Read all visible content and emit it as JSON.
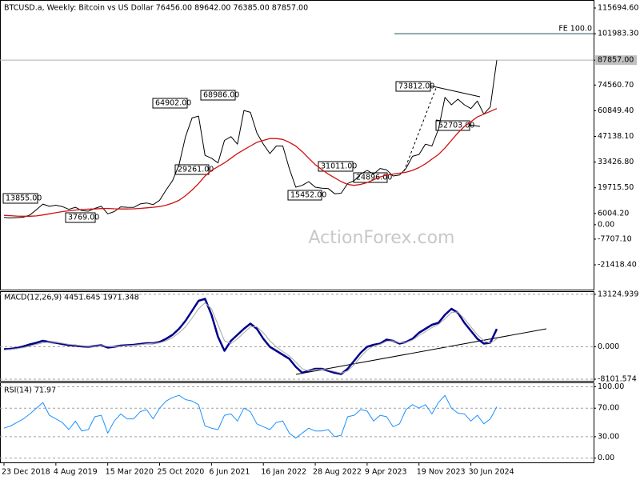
{
  "chart_data": [
    {
      "type": "line",
      "title": "BTCUSD.a, Weekly:  Bitcoin vs US Dollar  76456.00 89642.00 76385.00 87857.00",
      "watermark": "ActionForex.com",
      "categories": [
        "23 Dec 2018",
        null,
        null,
        null,
        null,
        null,
        null,
        null,
        "4 Aug 2019",
        null,
        null,
        null,
        null,
        null,
        null,
        null,
        "15 Mar 2020",
        null,
        null,
        null,
        null,
        null,
        null,
        null,
        "25 Oct 2020",
        null,
        null,
        null,
        null,
        null,
        null,
        null,
        "6 Jun 2021",
        null,
        null,
        null,
        null,
        null,
        null,
        null,
        "16 Jan 2022",
        null,
        null,
        null,
        null,
        null,
        null,
        null,
        "28 Aug 2022",
        null,
        null,
        null,
        null,
        null,
        null,
        null,
        "9 Apr 2023",
        null,
        null,
        null,
        null,
        null,
        null,
        null,
        "19 Nov 2023",
        null,
        null,
        null,
        null,
        null,
        null,
        null,
        "30 Jun 2024",
        null,
        null,
        null,
        null
      ],
      "series": [
        {
          "color": "#000000",
          "values": [
            3900,
            3600,
            3800,
            4000,
            5200,
            8000,
            11000,
            9800,
            10400,
            9700,
            8200,
            9300,
            7500,
            7200,
            8700,
            9800,
            5800,
            7000,
            9500,
            9300,
            9200,
            11100,
            11600,
            10700,
            13000,
            18500,
            23500,
            32000,
            47000,
            57000,
            58000,
            37000,
            35500,
            33000,
            45000,
            47000,
            43000,
            61000,
            60000,
            49000,
            43000,
            38000,
            42000,
            42000,
            30000,
            20000,
            21000,
            23000,
            20000,
            19500,
            19300,
            16500,
            16800,
            22000,
            23500,
            27000,
            29000,
            27000,
            30000,
            29300,
            26000,
            26500,
            30000,
            36500,
            37500,
            43000,
            42000,
            51000,
            68000,
            64000,
            67000,
            64000,
            62000,
            66000,
            59000,
            63000,
            87857
          ]
        },
        {
          "color": "#d01010",
          "values": [
            5000,
            4800,
            4600,
            4500,
            4500,
            4700,
            5200,
            5800,
            6400,
            7000,
            7400,
            7800,
            8100,
            8300,
            8400,
            8600,
            8700,
            8500,
            8400,
            8400,
            8500,
            8700,
            9000,
            9300,
            9700,
            10400,
            11500,
            13000,
            15500,
            18500,
            22000,
            26000,
            29000,
            31000,
            33000,
            35500,
            38000,
            40000,
            42000,
            44000,
            45000,
            46000,
            46000,
            45500,
            44000,
            42000,
            39000,
            35500,
            32000,
            29500,
            27000,
            25000,
            23000,
            21500,
            21000,
            21500,
            22500,
            24000,
            25500,
            26500,
            27000,
            27500,
            28000,
            29000,
            30500,
            32500,
            35000,
            37500,
            41000,
            45000,
            49000,
            52500,
            55000,
            57500,
            59000,
            60500,
            62000
          ]
        }
      ],
      "ylim": [
        -34660,
        119970
      ],
      "yticks": [
        {
          "value": 115694.6,
          "label": "115694.60"
        },
        {
          "value": 101983.3,
          "label": "101983.30"
        },
        {
          "value": 87857,
          "label": "87857.00"
        },
        {
          "value": 74560.7,
          "label": "74560.70"
        },
        {
          "value": 60849.4,
          "label": "60849.40"
        },
        {
          "value": 47138.1,
          "label": "47138.10"
        },
        {
          "value": 33426.8,
          "label": "33426.80"
        },
        {
          "value": 19715.5,
          "label": "19715.50"
        },
        {
          "value": 6004.2,
          "label": "6004.20"
        },
        {
          "value": 0,
          "label": "0.00"
        },
        {
          "value": -7707.1,
          "label": "-7707.10"
        },
        {
          "value": -21418.4,
          "label": "-21418.40"
        }
      ],
      "grid": false,
      "annotations": [
        "13855.00",
        "3769.00",
        "64902.00",
        "68986.00",
        "29261.00",
        "15452.00",
        "31011.00",
        "24896.00",
        "73812.00",
        "52703.00"
      ],
      "fe_line": {
        "label": "FE 100.0",
        "value": 101983.3
      }
    },
    {
      "type": "line",
      "title": "MACD(12,26,9) 4451.645 1971.348",
      "series": [
        {
          "color": "#00008b",
          "values": [
            -600,
            -500,
            -300,
            100,
            600,
            1000,
            1500,
            1200,
            1000,
            700,
            400,
            300,
            100,
            0,
            200,
            400,
            -200,
            0,
            300,
            400,
            500,
            700,
            900,
            900,
            1200,
            2000,
            3000,
            4500,
            6500,
            9000,
            11500,
            12000,
            8000,
            2500,
            -1000,
            1500,
            3000,
            4500,
            5800,
            4500,
            2000,
            0,
            -1000,
            -2000,
            -3000,
            -5000,
            -6500,
            -6000,
            -5500,
            -5500,
            -6000,
            -6500,
            -6800,
            -5500,
            -3500,
            -1500,
            0,
            500,
            800,
            1800,
            1500,
            800,
            1200,
            2000,
            3500,
            4500,
            5500,
            6000,
            8000,
            9500,
            8500,
            6000,
            4000,
            2000,
            800,
            1000,
            4451.645
          ]
        },
        {
          "color": "#a9a9a9",
          "values": [
            -800,
            -650,
            -450,
            -200,
            200,
            600,
            1000,
            1200,
            1100,
            900,
            600,
            450,
            250,
            100,
            150,
            300,
            100,
            0,
            150,
            300,
            400,
            550,
            750,
            850,
            1000,
            1500,
            2300,
            3500,
            5000,
            7200,
            9500,
            11000,
            9500,
            5500,
            1500,
            800,
            2000,
            3500,
            5000,
            5000,
            3500,
            1500,
            0,
            -1200,
            -2300,
            -3800,
            -5500,
            -6000,
            -5700,
            -5600,
            -5800,
            -6200,
            -6600,
            -6000,
            -4500,
            -2500,
            -800,
            200,
            600,
            1400,
            1500,
            1000,
            1100,
            1700,
            2800,
            3800,
            4800,
            5600,
            7000,
            8600,
            8700,
            7000,
            5000,
            3000,
            1500,
            900,
            1971.348
          ]
        }
      ],
      "ylim": [
        -8700,
        13900
      ],
      "yticks": [
        13124.939,
        {
          "value": 0,
          "label": "0.000"
        },
        -8101.574
      ],
      "grid": true
    },
    {
      "type": "line",
      "title": "RSI(14) 71.97",
      "series": [
        {
          "color": "#1e90ff",
          "values": [
            42,
            45,
            50,
            55,
            62,
            70,
            78,
            60,
            55,
            50,
            40,
            52,
            38,
            40,
            58,
            60,
            35,
            52,
            62,
            55,
            55,
            65,
            68,
            55,
            70,
            80,
            85,
            88,
            82,
            80,
            75,
            45,
            42,
            40,
            60,
            62,
            52,
            70,
            65,
            48,
            44,
            40,
            50,
            52,
            35,
            28,
            35,
            42,
            38,
            38,
            40,
            30,
            32,
            58,
            60,
            68,
            66,
            52,
            60,
            58,
            44,
            48,
            68,
            75,
            70,
            75,
            62,
            78,
            88,
            70,
            63,
            62,
            52,
            60,
            48,
            55,
            71.97
          ]
        }
      ],
      "ylim": [
        -6,
        105
      ],
      "yticks": [
        {
          "value": 100,
          "label": "100.00"
        },
        {
          "value": 70,
          "label": "70.00"
        },
        {
          "value": 30,
          "label": "30.00"
        },
        {
          "value": 0,
          "label": "0.00"
        }
      ],
      "grid": true
    }
  ]
}
